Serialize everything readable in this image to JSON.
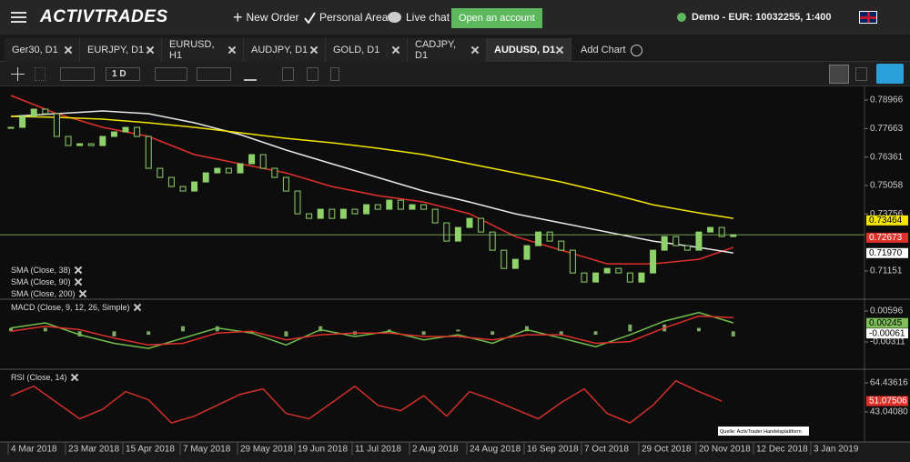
{
  "header": {
    "logo": "ACTIVTRADES",
    "new_order": "New Order",
    "personal_area": "Personal Area",
    "live_chat": "Live chat",
    "open_account": "Open an account",
    "account": "Demo - EUR: 10032255, 1:400"
  },
  "tabs": [
    "Ger30, D1",
    "EURJPY, D1",
    "EURUSD, H1",
    "AUDJPY, D1",
    "GOLD, D1",
    "CADJPY, D1",
    "AUDUSD, D1"
  ],
  "active_tab": 6,
  "add_chart": "Add Chart",
  "toolbar": {
    "timeframe": "1 D"
  },
  "source": "Quelle: ActivTrader Handelsplattform",
  "chart_data": [
    {
      "type": "candlestick",
      "color": "#8fd16a",
      "close": [
        0.77718,
        0.78217,
        0.7855,
        0.78342,
        0.77302,
        0.76886,
        0.76969,
        0.76886,
        0.77302,
        0.7751,
        0.77718,
        0.77302,
        0.75846,
        0.7543,
        0.75014,
        0.74806,
        0.75222,
        0.75638,
        0.75846,
        0.75638,
        0.76054,
        0.7647,
        0.75846,
        0.7543,
        0.74806,
        0.73766,
        0.73558,
        0.73974,
        0.73558,
        0.73974,
        0.73766,
        0.74182,
        0.73974,
        0.7439,
        0.73974,
        0.74182,
        0.73974,
        0.7335,
        0.72518,
        0.73142,
        0.73558,
        0.72934,
        0.72102,
        0.7127,
        0.71686,
        0.7231,
        0.72934,
        0.72518,
        0.72102,
        0.71062,
        0.70646,
        0.71062,
        0.7127,
        0.71062,
        0.70646,
        0.71062,
        0.72102,
        0.72726,
        0.7231,
        0.72102,
        0.72934,
        0.73142,
        0.72726,
        0.72809
      ],
      "overlays": [
        {
          "name": "SMA (Close, 38)",
          "color": "#e0302a",
          "x": [
            0,
            4,
            8,
            12,
            16,
            20,
            24,
            28,
            32,
            36,
            40,
            44,
            48,
            52,
            56,
            60,
            63
          ],
          "values": [
            0.79174,
            0.78342,
            0.77718,
            0.77302,
            0.7647,
            0.76054,
            0.75638,
            0.75014,
            0.74598,
            0.74307,
            0.73766,
            0.72726,
            0.72102,
            0.71478,
            0.71478,
            0.71686,
            0.72227
          ]
        },
        {
          "name": "SMA (Close, 90)",
          "color": "#e8e8e8",
          "x": [
            0,
            4,
            8,
            12,
            16,
            20,
            24,
            28,
            32,
            36,
            40,
            44,
            48,
            52,
            56,
            60,
            63
          ],
          "values": [
            0.78217,
            0.78342,
            0.78467,
            0.78342,
            0.77926,
            0.77386,
            0.76678,
            0.76054,
            0.7543,
            0.74806,
            0.74307,
            0.73766,
            0.7335,
            0.72934,
            0.72518,
            0.72227,
            0.71978
          ]
        },
        {
          "name": "SMA (Close, 200)",
          "color": "#f2e600",
          "x": [
            0,
            4,
            8,
            12,
            16,
            20,
            24,
            28,
            32,
            36,
            40,
            44,
            48,
            52,
            56,
            60,
            63
          ],
          "values": [
            0.78217,
            0.78176,
            0.78092,
            0.77926,
            0.77718,
            0.77468,
            0.77218,
            0.77011,
            0.76761,
            0.7647,
            0.76054,
            0.75638,
            0.75222,
            0.74722,
            0.74182,
            0.73808,
            0.73558
          ]
        }
      ],
      "badges": [
        {
          "value": 0.73464,
          "color": "#f2e600",
          "text_color": "#000"
        },
        {
          "value": 0.72673,
          "color": "#e0302a",
          "text_color": "#fff"
        },
        {
          "value": 0.7197,
          "label": "0.71970",
          "color": "#ffffff",
          "text_color": "#000"
        }
      ],
      "xlim": [
        -0.32,
        74.29
      ],
      "ylim": [
        0.69903,
        0.79507
      ],
      "yticks": [
        0.78966,
        0.77663,
        0.76361,
        0.75058,
        0.73756,
        0.71151
      ]
    },
    {
      "type": "macd",
      "title": "MACD (Close, 9, 12, 26, Simple)",
      "x": [
        0,
        3,
        6,
        9,
        12,
        15,
        18,
        21,
        24,
        27,
        30,
        33,
        36,
        39,
        42,
        45,
        48,
        51,
        54,
        57,
        60,
        63
      ],
      "macd": {
        "color": "#6fbf4a",
        "values": [
          0.001,
          0.0025,
          -0.001,
          -0.0035,
          -0.005,
          -0.002,
          0.001,
          -0.0005,
          -0.004,
          0.0005,
          -0.0015,
          0,
          -0.0025,
          -0.001,
          -0.0035,
          0.0005,
          -0.002,
          -0.0045,
          -0.001,
          0.003,
          0.0055,
          0.0025
        ]
      },
      "signal": {
        "color": "#e0302a",
        "values": [
          0,
          0.0015,
          0.0005,
          -0.002,
          -0.004,
          -0.0035,
          -0.0005,
          0,
          -0.0025,
          -0.001,
          -0.0005,
          -0.0005,
          -0.0015,
          -0.0015,
          -0.0025,
          -0.001,
          -0.001,
          -0.0035,
          -0.003,
          0.001,
          0.0045,
          0.004
        ]
      },
      "histogram": {
        "color": "#7fa86a",
        "values": [
          0.001,
          0.001,
          -0.0015,
          -0.0015,
          -0.001,
          0.0015,
          0.0015,
          -0.0005,
          -0.0015,
          0.0015,
          -0.001,
          0.0005,
          -0.001,
          0.0005,
          -0.001,
          0.0015,
          -0.001,
          -0.001,
          0.002,
          0.002,
          0.001,
          -0.0015
        ]
      },
      "badges": [
        {
          "value": 0.00245,
          "color": "#7fbf5a",
          "text_color": "#000"
        },
        {
          "value": -0.00061,
          "color": "#ffffff",
          "text_color": "#000"
        }
      ],
      "xlim": [
        -0.32,
        74.29
      ],
      "ylim": [
        -0.01085,
        0.00916
      ],
      "yticks": [
        0.00596,
        -0.00311
      ]
    },
    {
      "type": "line",
      "title": "RSI (Close, 14)",
      "color": "#d0302a",
      "x": [
        0,
        2,
        4,
        6,
        8,
        10,
        12,
        14,
        16,
        18,
        20,
        22,
        24,
        26,
        28,
        30,
        32,
        34,
        36,
        38,
        40,
        42,
        44,
        46,
        48,
        50,
        52,
        54,
        56,
        58,
        60,
        62
      ],
      "values": [
        55,
        62,
        50,
        38,
        45,
        58,
        52,
        35,
        40,
        48,
        56,
        60,
        42,
        38,
        50,
        62,
        48,
        44,
        55,
        40,
        58,
        52,
        45,
        38,
        50,
        60,
        42,
        35,
        48,
        66,
        58,
        51
      ],
      "badges": [
        {
          "value": 51.07506,
          "color": "#e0302a",
          "text_color": "#fff"
        }
      ],
      "xlim": [
        -0.32,
        74.29
      ],
      "ylim": [
        21.65,
        73.8
      ],
      "yticks": [
        64.43616,
        {
          "value": 43.0408,
          "label": "43.04080"
        }
      ],
      "xticks": [
        {
          "value": 0,
          "label": "4 Mar 2018"
        },
        {
          "value": 5,
          "label": "23 Mar 2018"
        },
        {
          "value": 10,
          "label": "15 Apr 2018"
        },
        {
          "value": 15,
          "label": "7 May 2018"
        },
        {
          "value": 20,
          "label": "29 May 2018"
        },
        {
          "value": 25,
          "label": "19 Jun 2018"
        },
        {
          "value": 30,
          "label": "11 Jul 2018"
        },
        {
          "value": 35,
          "label": "2 Aug 2018"
        },
        {
          "value": 40,
          "label": "24 Aug 2018"
        },
        {
          "value": 45,
          "label": "16 Sep 2018"
        },
        {
          "value": 50,
          "label": "7 Oct 2018"
        },
        {
          "value": 55,
          "label": "29 Oct 2018"
        },
        {
          "value": 60,
          "label": "20 Nov 2018"
        },
        {
          "value": 65,
          "label": "12 Dec 2018"
        },
        {
          "value": 70,
          "label": "3 Jan 2019"
        }
      ]
    }
  ]
}
